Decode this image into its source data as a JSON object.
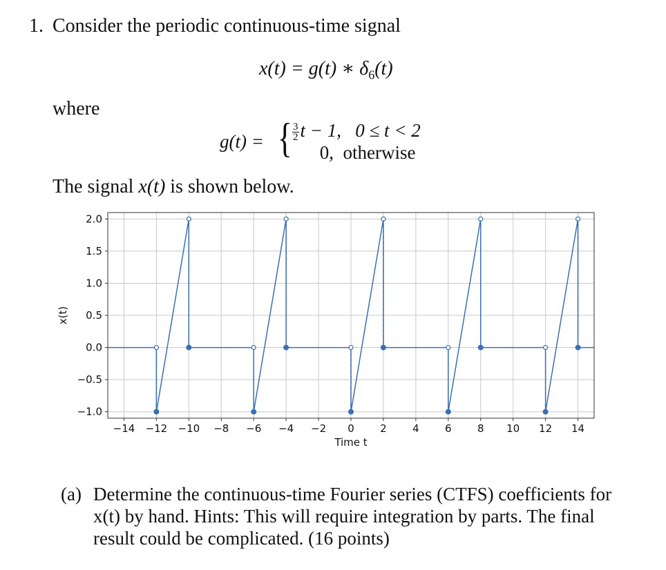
{
  "problem": {
    "number": "1.",
    "intro": "Consider the periodic continuous-time signal",
    "eq_x": "x(t) = g(t) ∗ δ",
    "eq_x_sub": "6",
    "eq_x_tail": "(t)",
    "where": "where",
    "g_lhs": "g(t) =",
    "g_frac_num": "3",
    "g_frac_den": "2",
    "g_case1_expr": "t − 1,",
    "g_case1_cond": "0 ≤ t < 2",
    "g_case2_expr": "0,",
    "g_case2_cond": "otherwise",
    "signal_text_pre": "The signal ",
    "signal_text_math": "x(t)",
    "signal_text_post": " is shown below."
  },
  "part_a": {
    "label": "(a)",
    "text": "Determine the continuous-time Fourier series (CTFS) coefficients for x(t) by hand. Hints: This will require integration by parts. The final result could be complicated. (16 points)"
  },
  "chart_data": {
    "type": "line",
    "xlabel": "Time t",
    "ylabel": "x(t)",
    "xlim": [
      -15,
      15
    ],
    "ylim": [
      -1.0,
      2.0
    ],
    "xticks": [
      -14,
      -12,
      -10,
      -8,
      -6,
      -4,
      -2,
      0,
      2,
      4,
      6,
      8,
      10,
      12,
      14
    ],
    "xtick_labels": [
      "−14",
      "−12",
      "−10",
      "−8",
      "−6",
      "−4",
      "−2",
      "0",
      "2",
      "4",
      "6",
      "8",
      "10",
      "12",
      "14"
    ],
    "yticks": [
      -1.0,
      -0.5,
      0.0,
      0.5,
      1.0,
      1.5,
      2.0
    ],
    "ytick_labels": [
      "−1.0",
      "−0.5",
      "0.0",
      "0.5",
      "1.0",
      "1.5",
      "2.0"
    ],
    "grid": true,
    "color": "#3a6fb0",
    "series": [
      {
        "x": [
          -15,
          -12,
          -12,
          -10,
          -10,
          -6,
          -6,
          -4,
          -4,
          0,
          0,
          2,
          2,
          6,
          6,
          8,
          8,
          12,
          12,
          14,
          14,
          15
        ],
        "y": [
          0,
          0,
          -1,
          2,
          0,
          0,
          -1,
          2,
          0,
          0,
          -1,
          2,
          0,
          0,
          -1,
          2,
          0,
          0,
          -1,
          2,
          0,
          0
        ]
      }
    ],
    "periods": [
      -12,
      -6,
      0,
      6,
      12
    ],
    "filled_points": [
      {
        "x": -12,
        "y": -1
      },
      {
        "x": -10,
        "y": 0
      },
      {
        "x": -6,
        "y": -1
      },
      {
        "x": -4,
        "y": 0
      },
      {
        "x": 0,
        "y": -1
      },
      {
        "x": 2,
        "y": 0
      },
      {
        "x": 6,
        "y": -1
      },
      {
        "x": 8,
        "y": 0
      },
      {
        "x": 12,
        "y": -1
      },
      {
        "x": 14,
        "y": 0
      }
    ],
    "open_points": [
      {
        "x": -12,
        "y": 0
      },
      {
        "x": -10,
        "y": 2
      },
      {
        "x": -6,
        "y": 0
      },
      {
        "x": -4,
        "y": 2
      },
      {
        "x": 0,
        "y": 0
      },
      {
        "x": 2,
        "y": 2
      },
      {
        "x": 6,
        "y": 0
      },
      {
        "x": 8,
        "y": 2
      },
      {
        "x": 12,
        "y": 0
      },
      {
        "x": 14,
        "y": 2
      }
    ]
  }
}
